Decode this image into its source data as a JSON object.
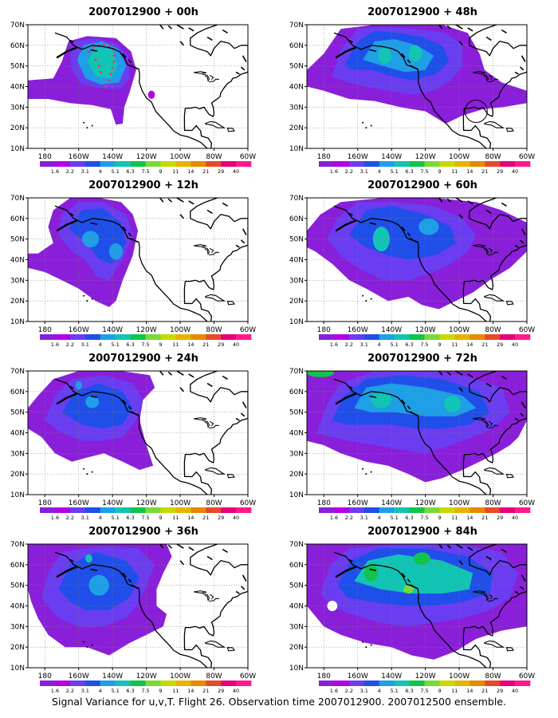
{
  "figure": {
    "caption": "Signal Variance for u,v,T. Flight 26. Observation time 2007012900. 2007012500 ensemble.",
    "lat_labels": [
      "70N",
      "60N",
      "50N",
      "40N",
      "30N",
      "20N",
      "10N"
    ],
    "lon_labels": [
      "180",
      "160W",
      "140W",
      "120W",
      "100W",
      "80W",
      "60W"
    ],
    "colorbar": {
      "levels": [
        "1.6",
        "2.2",
        "3.1",
        "4",
        "5.1",
        "6.3",
        "7.5",
        "9",
        "11",
        "14",
        "21",
        "29",
        "40"
      ],
      "colors": [
        "#8a1fd9",
        "#b300e6",
        "#6a3df0",
        "#1f4fe8",
        "#1e9fe6",
        "#12c4b4",
        "#11c44a",
        "#7ad93a",
        "#c9d900",
        "#e6b400",
        "#e68a00",
        "#e64a2a",
        "#e6007a",
        "#ff1a8c"
      ]
    }
  },
  "panels": [
    {
      "title": "2007012900 + 00h"
    },
    {
      "title": "2007012900 + 48h"
    },
    {
      "title": "2007012900 + 12h"
    },
    {
      "title": "2007012900 + 60h"
    },
    {
      "title": "2007012900 + 24h"
    },
    {
      "title": "2007012900 + 72h"
    },
    {
      "title": "2007012900 + 36h"
    },
    {
      "title": "2007012900 + 84h"
    }
  ]
}
